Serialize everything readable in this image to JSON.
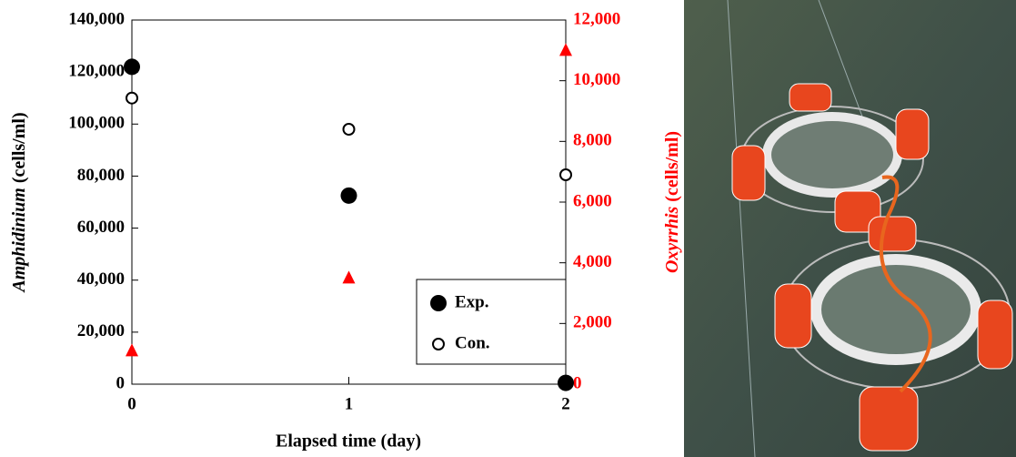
{
  "chart_data": {
    "type": "scatter",
    "x_label": "Elapsed time (day)",
    "y_label": "Amphidinium (cells/ml)",
    "y2_label": "Oxyrrhis (cells/ml)",
    "x": [
      0,
      1,
      2
    ],
    "xlim": [
      0,
      2
    ],
    "xticks": [
      0,
      1,
      2
    ],
    "ylim": [
      0,
      140000
    ],
    "yticks": [
      0,
      {
        "value": 20000,
        "label": "20,000"
      },
      {
        "value": 40000,
        "label": "40,000"
      },
      {
        "value": 60000,
        "label": "60,000"
      },
      {
        "value": 80000,
        "label": "80,000"
      },
      {
        "value": 100000,
        "label": "100,000"
      },
      {
        "value": 120000,
        "label": "120,000"
      },
      {
        "value": 140000,
        "label": "140,000"
      }
    ],
    "y2lim": [
      0,
      12000
    ],
    "y2ticks": [
      0,
      {
        "value": 2000,
        "label": "2,000"
      },
      {
        "value": 4000,
        "label": "4,000"
      },
      {
        "value": 6000,
        "label": "6,000"
      },
      {
        "value": 8000,
        "label": "8,000"
      },
      {
        "value": 10000,
        "label": "10,000"
      },
      {
        "value": 12000,
        "label": "12,000"
      }
    ],
    "y2_color": "#ff0000",
    "series": [
      {
        "name": "Exp.",
        "color": "#000000",
        "marker": "filled-circle",
        "values": [
          122000,
          72500,
          500
        ]
      },
      {
        "name": "Con.",
        "color": "#000000",
        "marker": "open-circle",
        "values": [
          110000,
          98000,
          80500
        ]
      },
      {
        "color": "#ff0000",
        "marker": "triangle",
        "axis": "y2",
        "values": [
          1100,
          3500,
          11000
        ]
      }
    ]
  }
}
